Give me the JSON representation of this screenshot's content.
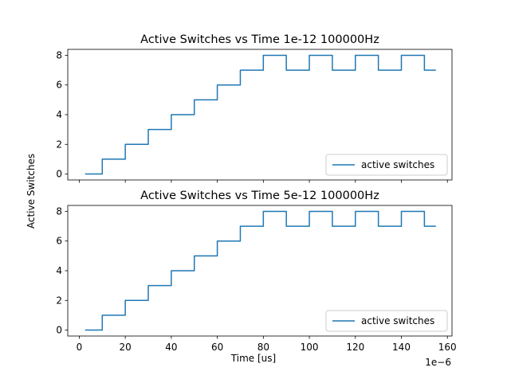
{
  "figure": {
    "ylabel": "Active Switches",
    "xlabel": "Time [us]",
    "x_offset_text": "1e−6"
  },
  "chart_data": [
    {
      "type": "line",
      "title": "Active Switches vs Time 1e-12 100000Hz",
      "ylabel": "Active Switches",
      "xlim": [
        -5,
        162
      ],
      "ylim": [
        -0.4,
        8.4
      ],
      "x_ticks": [
        0,
        20,
        40,
        60,
        80,
        100,
        120,
        140,
        160
      ],
      "y_ticks": [
        0,
        2,
        4,
        6,
        8
      ],
      "x_tick_labels_shown": false,
      "grid": false,
      "legend_position": "lower right",
      "series": [
        {
          "name": "active switches",
          "color": "#1f77b4",
          "step": "post",
          "x": [
            2.5,
            10,
            20,
            30,
            40,
            50,
            60,
            70,
            80,
            90,
            100,
            110,
            120,
            130,
            140,
            150,
            155
          ],
          "y": [
            0,
            1,
            2,
            3,
            4,
            5,
            6,
            7,
            8,
            7,
            8,
            7,
            8,
            7,
            8,
            7,
            7
          ]
        }
      ]
    },
    {
      "type": "line",
      "title": "Active Switches vs Time 5e-12 100000Hz",
      "ylabel": "Active Switches",
      "xlabel": "Time [us]",
      "xlim": [
        -5,
        162
      ],
      "ylim": [
        -0.4,
        8.4
      ],
      "x_ticks": [
        0,
        20,
        40,
        60,
        80,
        100,
        120,
        140,
        160
      ],
      "y_ticks": [
        0,
        2,
        4,
        6,
        8
      ],
      "x_tick_labels_shown": true,
      "x_offset_text": "1e−6",
      "grid": false,
      "legend_position": "lower right",
      "series": [
        {
          "name": "active switches",
          "color": "#1f77b4",
          "step": "post",
          "x": [
            2.5,
            10,
            20,
            30,
            40,
            50,
            60,
            70,
            80,
            90,
            100,
            110,
            120,
            130,
            140,
            150,
            155
          ],
          "y": [
            0,
            1,
            2,
            3,
            4,
            5,
            6,
            7,
            8,
            7,
            8,
            7,
            8,
            7,
            8,
            7,
            7
          ]
        }
      ]
    }
  ]
}
